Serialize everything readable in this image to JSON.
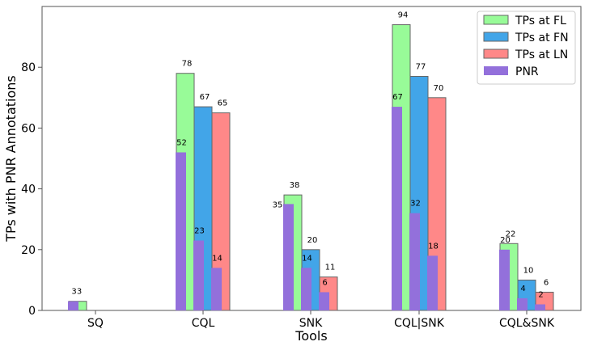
{
  "chart_data": {
    "type": "bar",
    "xlabel": "Tools",
    "ylabel": "TPs with PNR Annotations",
    "ylim": [
      0,
      100
    ],
    "yticks": [
      0,
      20,
      40,
      60,
      80
    ],
    "categories": [
      "SQ",
      "CQL",
      "SNK",
      "CQL|SNK",
      "CQL&SNK"
    ],
    "series": [
      {
        "name": "TPs at FL",
        "color": "#98fb98",
        "values": [
          3,
          78,
          38,
          94,
          22
        ]
      },
      {
        "name": "TPs at FN",
        "color": "#42a5e8",
        "values": [
          0,
          67,
          20,
          77,
          10
        ]
      },
      {
        "name": "TPs at LN",
        "color": "#ff8888",
        "values": [
          0,
          65,
          11,
          70,
          6
        ]
      }
    ],
    "pnr": {
      "name": "PNR",
      "color": "#9370db",
      "values": [
        [
          3,
          0,
          0
        ],
        [
          52,
          23,
          14
        ],
        [
          35,
          14,
          6
        ],
        [
          67,
          32,
          18
        ],
        [
          20,
          4,
          2
        ]
      ]
    },
    "legend_position": "top-right",
    "grid": false
  }
}
